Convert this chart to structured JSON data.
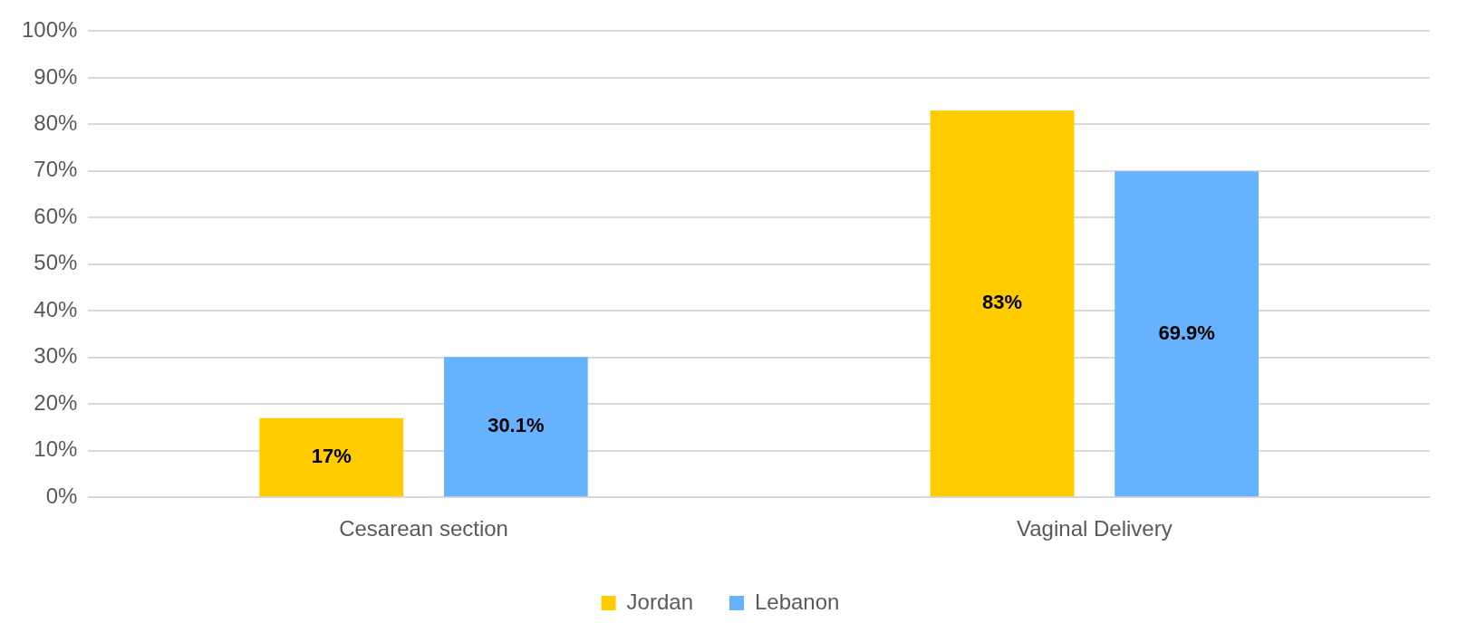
{
  "chart_data": {
    "type": "bar",
    "categories": [
      "Cesarean section",
      "Vaginal Delivery"
    ],
    "series": [
      {
        "name": "Jordan",
        "color": "#ffcc00",
        "values": [
          17,
          83
        ],
        "value_labels": [
          "17%",
          "83%"
        ]
      },
      {
        "name": "Lebanon",
        "color": "#66b2ff",
        "values": [
          30.1,
          69.9
        ],
        "value_labels": [
          "30.1%",
          "69.9%"
        ]
      }
    ],
    "ylim": [
      0,
      100
    ],
    "yticks": [
      {
        "value": 0,
        "label": "0%"
      },
      {
        "value": 10,
        "label": "10%"
      },
      {
        "value": 20,
        "label": "20%"
      },
      {
        "value": 30,
        "label": "30%"
      },
      {
        "value": 40,
        "label": "40%"
      },
      {
        "value": 50,
        "label": "50%"
      },
      {
        "value": 60,
        "label": "60%"
      },
      {
        "value": 70,
        "label": "70%"
      },
      {
        "value": 80,
        "label": "80%"
      },
      {
        "value": 90,
        "label": "90%"
      },
      {
        "value": 100,
        "label": "100%"
      }
    ],
    "grid": "y",
    "legend": "bottom"
  }
}
